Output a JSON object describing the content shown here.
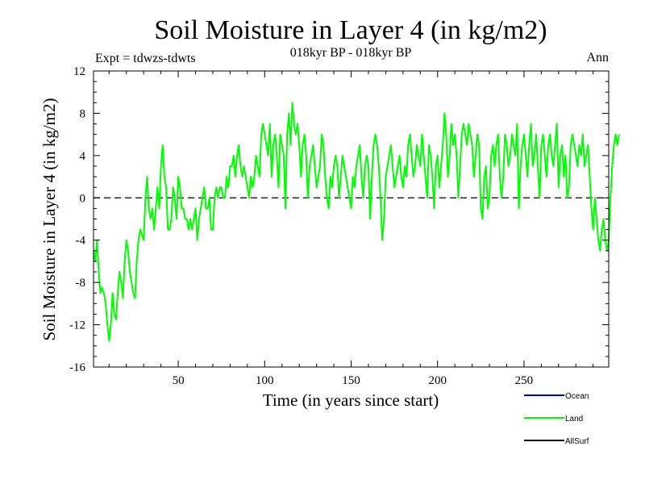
{
  "chart_data": {
    "type": "line",
    "title": "Soil Moisture in Layer 4 (in kg/m2)",
    "subtitle": "018kyr BP - 018kyr BP",
    "experiment_label": "Expt = tdwzs-tdwts",
    "season_label": "Ann",
    "xlabel": "Time (in years since start)",
    "ylabel": "Soil Moisture in Layer 4 (in kg/m2)",
    "xlim": [
      1,
      299
    ],
    "ylim": [
      -16,
      12
    ],
    "xticks": [
      50,
      100,
      150,
      200,
      250
    ],
    "yticks": [
      -16,
      -12,
      -8,
      -4,
      0,
      4,
      8,
      12
    ],
    "zero_line": "dashed",
    "legend": {
      "placement": "bottom-right",
      "entries": [
        {
          "label": "Ocean",
          "color": "#0000ff"
        },
        {
          "label": "Land",
          "color": "#00ff00"
        },
        {
          "label": "AllSurf",
          "color": "#000000"
        }
      ]
    },
    "series": [
      {
        "name": "Land",
        "color": "#00ff00",
        "x_start": 1,
        "x_step": 1,
        "values": [
          -5,
          -6,
          -4,
          -7,
          -9,
          -8.5,
          -9,
          -10,
          -12,
          -13.5,
          -12,
          -9,
          -11,
          -11.5,
          -9,
          -7,
          -8,
          -9.5,
          -6,
          -4,
          -5,
          -7,
          -8,
          -9,
          -9.5,
          -6,
          -4,
          -3,
          -3.5,
          -4,
          0,
          2,
          -1,
          -2,
          -1,
          -3,
          -1,
          1,
          -1,
          3,
          5,
          2,
          1,
          -3,
          -3,
          -2,
          1,
          0,
          -2,
          2,
          1,
          -1,
          -1,
          -2,
          -2,
          -3,
          -2,
          -3,
          -2,
          -1,
          -4,
          -2,
          -1,
          0,
          1,
          -1,
          -1,
          0,
          -3,
          -3,
          0,
          1,
          0,
          1,
          1,
          0,
          0,
          2,
          1,
          3,
          3,
          4,
          2,
          4,
          5,
          3,
          2,
          3,
          2,
          1,
          0,
          2,
          1,
          2,
          4,
          3,
          2,
          6,
          7,
          6,
          5,
          4,
          7,
          2,
          5,
          6,
          4,
          1,
          6,
          5,
          4,
          -1,
          6,
          8,
          5,
          9,
          7,
          6,
          7,
          5,
          2,
          5,
          6,
          4,
          0,
          3,
          4,
          5,
          3,
          1,
          2,
          3,
          6,
          5,
          2,
          0,
          -1,
          2,
          1,
          3,
          4,
          3,
          0,
          2,
          4,
          3,
          2,
          1,
          0,
          -1,
          2,
          1,
          3,
          4,
          5,
          2,
          0,
          3,
          4,
          3,
          -2,
          2,
          5,
          6,
          5,
          3,
          0,
          -4,
          -2,
          2,
          3,
          4,
          5,
          3,
          1,
          2,
          3,
          4,
          2,
          1,
          3,
          2,
          5,
          6,
          4,
          2,
          3,
          5,
          4,
          3,
          6,
          4,
          2,
          0,
          5,
          4,
          2,
          -1,
          3,
          4,
          1,
          3,
          5,
          8,
          6,
          2,
          4,
          7,
          5,
          6,
          4,
          0,
          3,
          6,
          7,
          6,
          5,
          7,
          6,
          5,
          2,
          4,
          6,
          5,
          -1,
          -2,
          2,
          3,
          -1,
          0,
          4,
          5,
          3,
          5,
          6,
          2,
          0,
          2,
          6,
          5,
          3,
          4,
          6,
          5,
          4,
          7,
          -1,
          3,
          5,
          6,
          4,
          2,
          5,
          7,
          3,
          4,
          6,
          3,
          0,
          5,
          6,
          4,
          2,
          5,
          6,
          4,
          3,
          5,
          7,
          1,
          4,
          5,
          2,
          4,
          0,
          1,
          5,
          6,
          5,
          4,
          3,
          5,
          4,
          6,
          3,
          4,
          5,
          2,
          -1,
          -3,
          0,
          -2,
          -4,
          -5,
          -3,
          -2,
          -4,
          -5,
          -4,
          0,
          3,
          5,
          6,
          5,
          6
        ]
      }
    ]
  }
}
